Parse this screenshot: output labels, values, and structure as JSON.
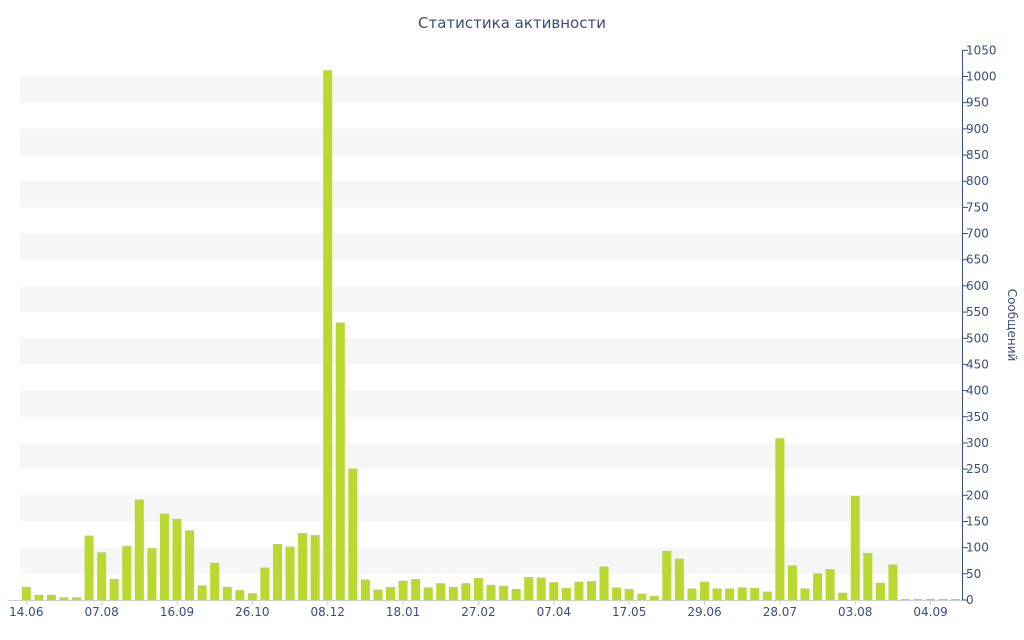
{
  "chart_data": {
    "type": "bar",
    "title": "Статистика активности",
    "xlabel": "",
    "ylabel": "Сообщений",
    "ylim": [
      0,
      1050
    ],
    "y_ticks": [
      0,
      50,
      100,
      150,
      200,
      250,
      300,
      350,
      400,
      450,
      500,
      550,
      600,
      650,
      700,
      750,
      800,
      850,
      900,
      950,
      1000,
      1050
    ],
    "x_tick_labels": [
      {
        "label": "14.06",
        "index": 0
      },
      {
        "label": "07.08",
        "index": 6
      },
      {
        "label": "16.09",
        "index": 12
      },
      {
        "label": "26.10",
        "index": 18
      },
      {
        "label": "08.12",
        "index": 24
      },
      {
        "label": "18.01",
        "index": 30
      },
      {
        "label": "27.02",
        "index": 36
      },
      {
        "label": "07.04",
        "index": 42
      },
      {
        "label": "17.05",
        "index": 48
      },
      {
        "label": "29.06",
        "index": 54
      },
      {
        "label": "28.07",
        "index": 60
      },
      {
        "label": "03.08",
        "index": 66
      },
      {
        "label": "04.09",
        "index": 72
      }
    ],
    "values": [
      25,
      10,
      10,
      5,
      5,
      123,
      91,
      40,
      103,
      192,
      99,
      165,
      155,
      133,
      28,
      71,
      25,
      19,
      13,
      62,
      107,
      102,
      128,
      124,
      1012,
      530,
      251,
      39,
      20,
      25,
      37,
      40,
      24,
      32,
      25,
      32,
      42,
      29,
      27,
      21,
      44,
      43,
      34,
      23,
      35,
      36,
      64,
      24,
      21,
      12,
      8,
      94,
      79,
      22,
      35,
      22,
      22,
      24,
      23,
      16,
      309,
      66,
      22,
      51,
      59,
      14,
      199,
      90,
      33,
      68,
      2,
      2,
      2,
      2,
      2
    ],
    "bar_color": "#b9d930",
    "stripe_color": "#f6f6f6",
    "axis_color": "#3a4e7a",
    "grid": "alternating bands",
    "legend": "none"
  }
}
